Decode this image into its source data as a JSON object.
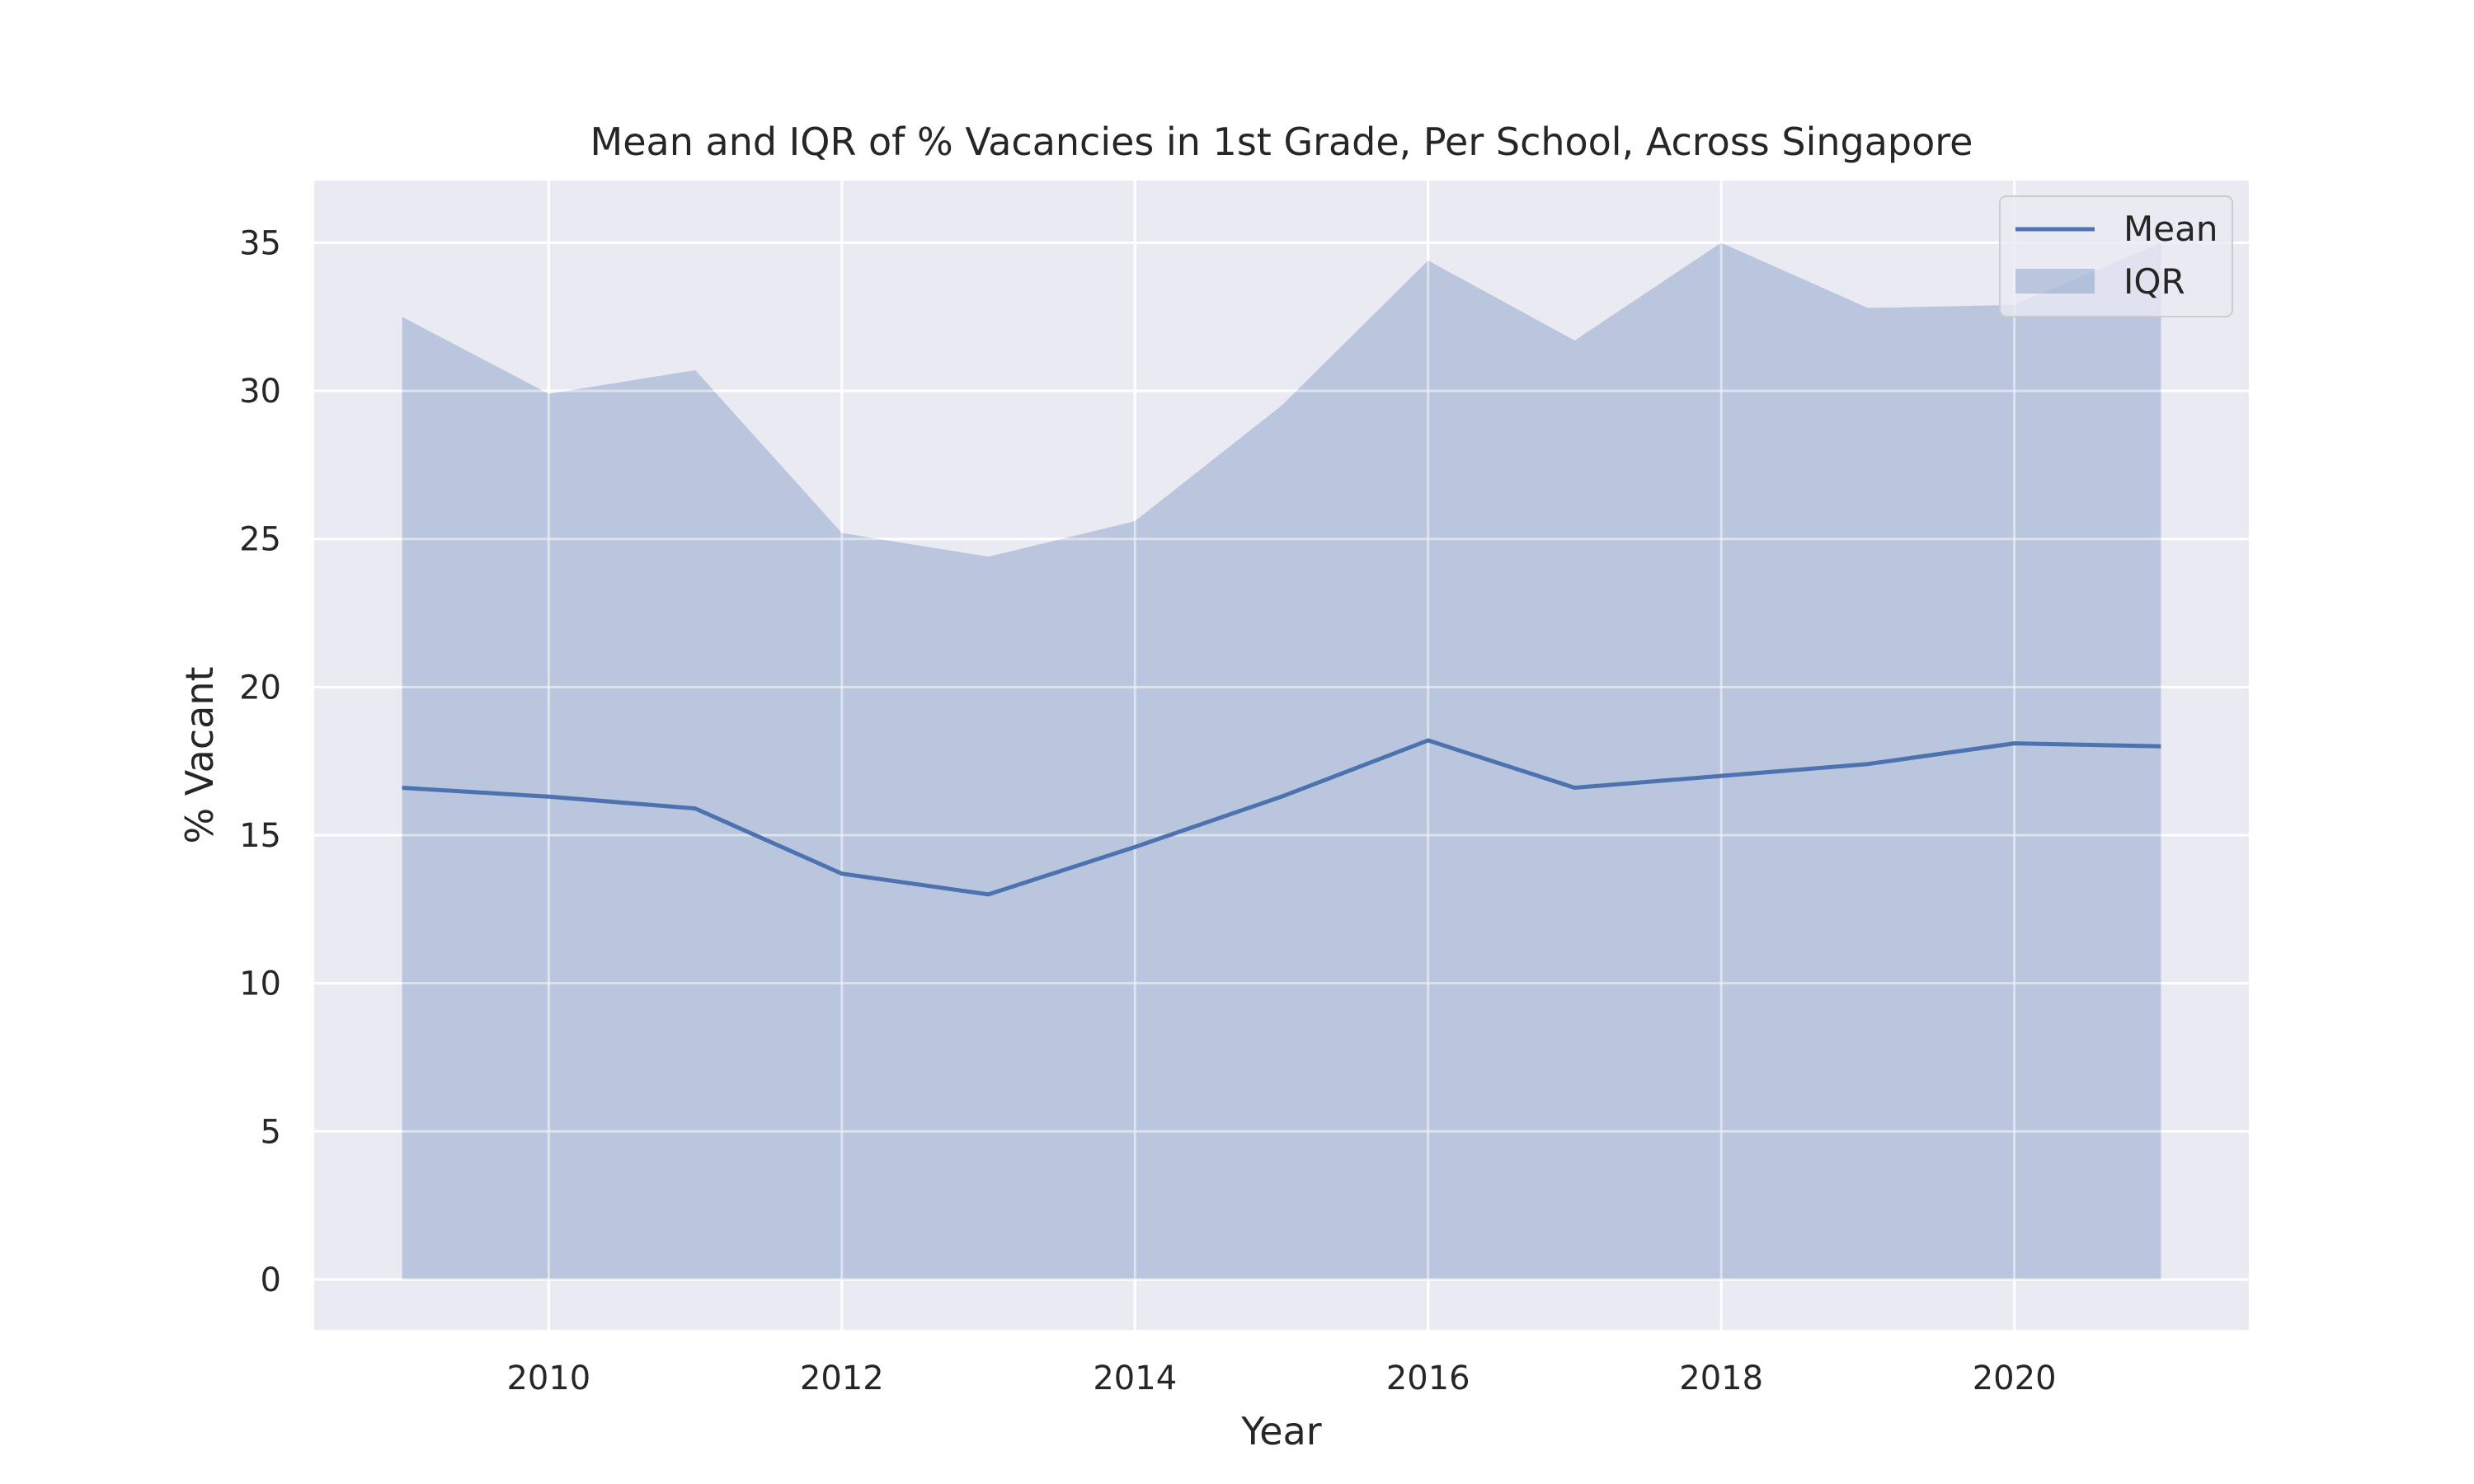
{
  "chart_data": {
    "type": "area",
    "title": "Mean and IQR of % Vacancies in 1st Grade, Per School, Across Singapore",
    "xlabel": "Year",
    "ylabel": "% Vacant",
    "x": [
      2009,
      2010,
      2011,
      2012,
      2013,
      2014,
      2015,
      2016,
      2017,
      2018,
      2019,
      2020,
      2021
    ],
    "xlim": [
      2008.4,
      2021.6
    ],
    "ylim": [
      -1.7,
      37.1
    ],
    "xticks": [
      2010,
      2012,
      2014,
      2016,
      2018,
      2020
    ],
    "yticks": [
      0,
      5,
      10,
      15,
      20,
      25,
      30,
      35
    ],
    "grid": true,
    "legend_position": "top-right",
    "series": [
      {
        "name": "Mean",
        "kind": "line",
        "color": "#4c72b0",
        "values": [
          16.6,
          16.3,
          15.9,
          13.7,
          13.0,
          14.6,
          16.3,
          18.2,
          16.6,
          17.0,
          17.4,
          18.1,
          18.0
        ]
      },
      {
        "name": "IQR",
        "kind": "band",
        "color": "#4c72b0",
        "lower": [
          0,
          0,
          0,
          0,
          0,
          0,
          0,
          0,
          0,
          0,
          0,
          0,
          0
        ],
        "upper": [
          32.5,
          29.9,
          30.7,
          25.2,
          24.4,
          25.6,
          29.5,
          34.4,
          31.7,
          35.0,
          32.8,
          32.9,
          35.0
        ]
      }
    ]
  }
}
